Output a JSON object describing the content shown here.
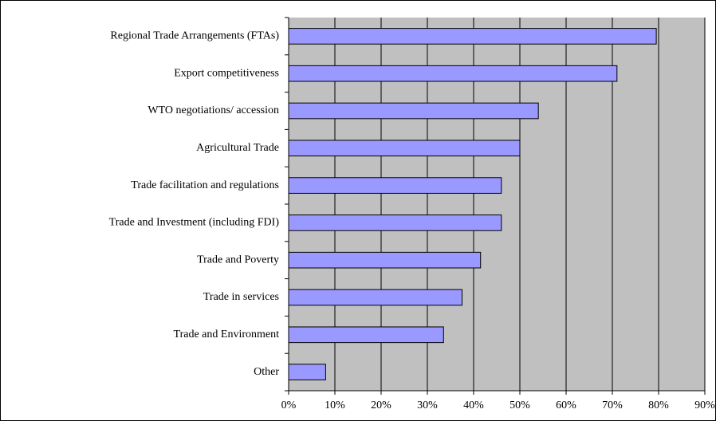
{
  "chart_data": {
    "type": "hbar",
    "categories": [
      "Regional Trade Arrangements (FTAs)",
      "Export competitiveness",
      "WTO negotiations/ accession",
      "Agricultural Trade",
      "Trade facilitation and regulations",
      "Trade and Investment (including FDI)",
      "Trade and Poverty",
      "Trade in services",
      "Trade and Environment",
      "Other"
    ],
    "values": [
      79.5,
      71,
      54,
      50,
      46,
      46,
      41.5,
      37.5,
      33.5,
      8
    ],
    "color": "#9999ff",
    "xlim": [
      0,
      90
    ],
    "xticks": [
      {
        "value": 0,
        "label": "0%"
      },
      {
        "value": 10,
        "label": "10%"
      },
      {
        "value": 20,
        "label": "20%"
      },
      {
        "value": 30,
        "label": "30%"
      },
      {
        "value": 40,
        "label": "40%"
      },
      {
        "value": 50,
        "label": "50%"
      },
      {
        "value": 60,
        "label": "60%"
      },
      {
        "value": 70,
        "label": "70%"
      },
      {
        "value": 80,
        "label": "80%"
      },
      {
        "value": 90,
        "label": "90%"
      }
    ],
    "grid": true
  }
}
